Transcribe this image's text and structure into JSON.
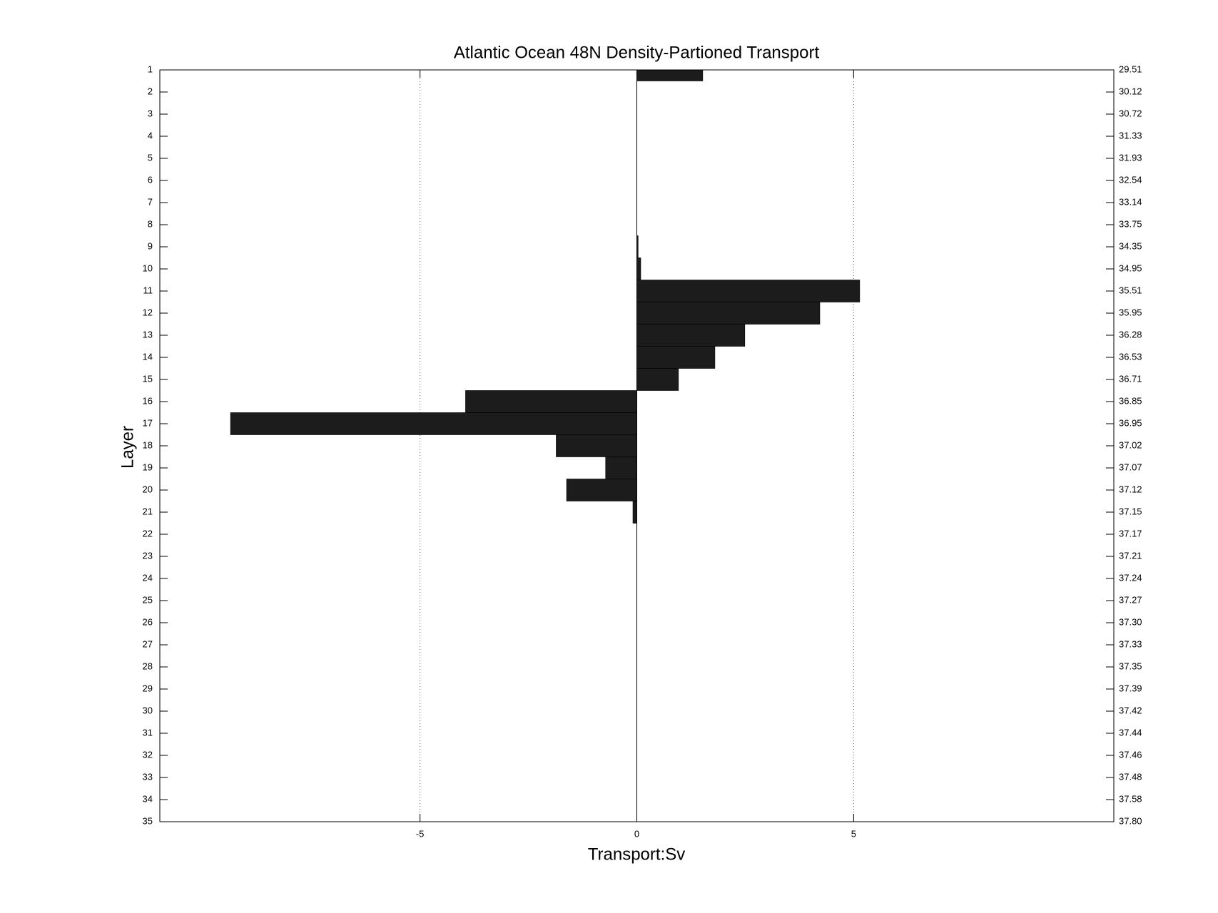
{
  "chart_data": {
    "type": "hbar",
    "title": "Atlantic Ocean 48N Density-Partioned Transport",
    "xlabel": "Transport:Sv",
    "ylabel": "Layer",
    "categories": [
      1,
      2,
      3,
      4,
      5,
      6,
      7,
      8,
      9,
      10,
      11,
      12,
      13,
      14,
      15,
      16,
      17,
      18,
      19,
      20,
      21,
      22,
      23,
      24,
      25,
      26,
      27,
      28,
      29,
      30,
      31,
      32,
      33,
      34,
      35
    ],
    "values": [
      1.52,
      0,
      0,
      0,
      0,
      0,
      0,
      0,
      0.03,
      0.09,
      5.14,
      4.22,
      2.49,
      1.8,
      0.96,
      -3.95,
      -9.37,
      -1.86,
      -0.72,
      -1.62,
      -0.09,
      0,
      0,
      0,
      0,
      0,
      0,
      0,
      0,
      0,
      0,
      0,
      0,
      0,
      0
    ],
    "right_labels": [
      "29.51",
      "30.12",
      "30.72",
      "31.33",
      "31.93",
      "32.54",
      "33.14",
      "33.75",
      "34.35",
      "34.95",
      "35.51",
      "35.95",
      "36.28",
      "36.53",
      "36.71",
      "36.85",
      "36.95",
      "37.02",
      "37.07",
      "37.12",
      "37.15",
      "37.17",
      "37.21",
      "37.24",
      "37.27",
      "37.30",
      "37.33",
      "37.35",
      "37.39",
      "37.42",
      "37.44",
      "37.46",
      "37.48",
      "37.58",
      "37.80"
    ],
    "color": "#1c1c1c",
    "xlim": [
      -11,
      11
    ],
    "xticks": [
      -5,
      0,
      5
    ],
    "ylim": [
      1,
      35
    ],
    "grid": true
  }
}
